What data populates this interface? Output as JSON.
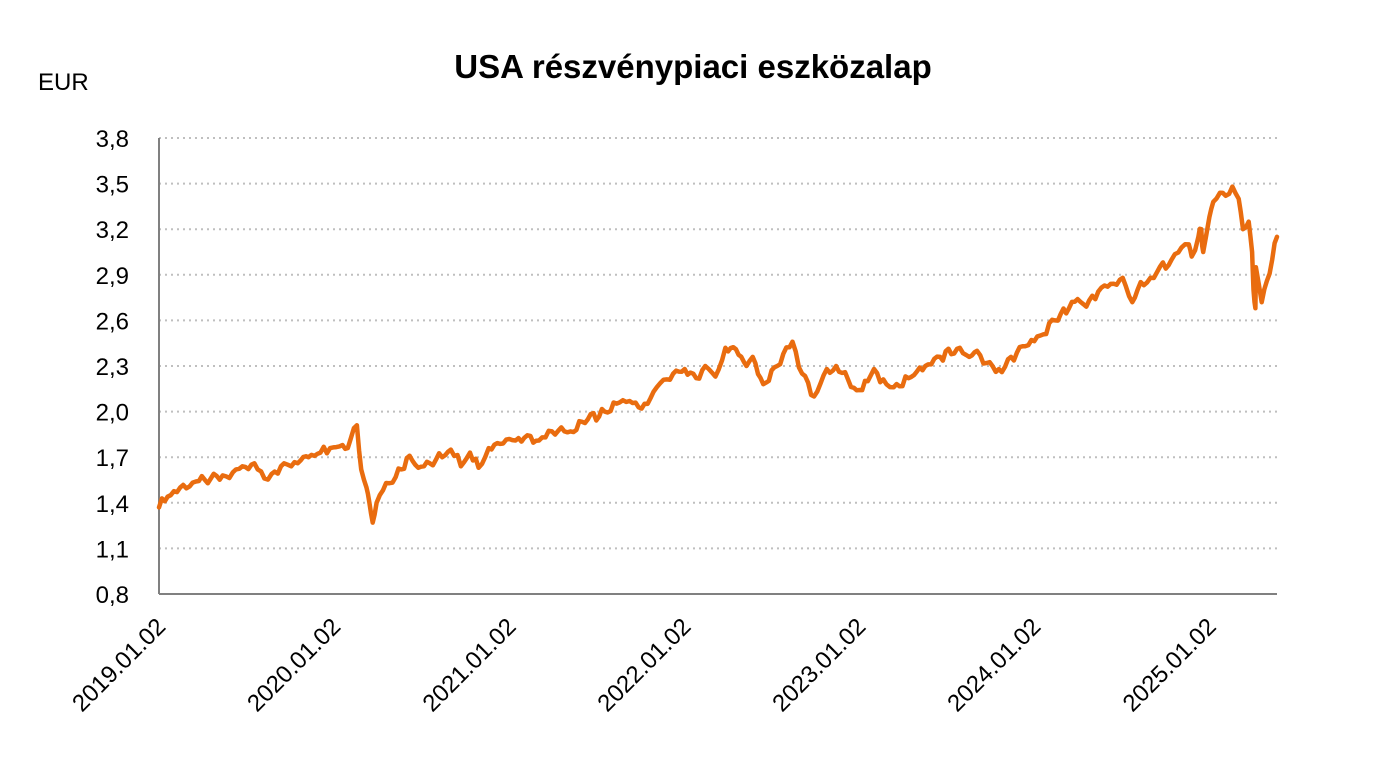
{
  "chart_data": {
    "type": "line",
    "title": "USA részvénypiaci eszközalap",
    "ylabel": "EUR",
    "xlabel": "",
    "ylim": [
      0.8,
      3.8
    ],
    "yticks": [
      "3,8",
      "3,5",
      "3,2",
      "2,9",
      "2,6",
      "2,3",
      "2,0",
      "1,7",
      "1,4",
      "1,1",
      "0,8"
    ],
    "yticks_values": [
      3.8,
      3.5,
      3.2,
      2.9,
      2.6,
      2.3,
      2.0,
      1.7,
      1.4,
      1.1,
      0.8
    ],
    "xlim": [
      "2019-01-02",
      "2025-05-23"
    ],
    "xticks": [
      "2019.01.02",
      "2020.01.02",
      "2021.01.02",
      "2022.01.02",
      "2023.01.02",
      "2024.01.02",
      "2025.01.02"
    ],
    "xticks_dates": [
      "2019-01-02",
      "2020-01-02",
      "2021-01-02",
      "2022-01-02",
      "2023-01-02",
      "2024-01-02",
      "2025-01-02"
    ],
    "grid": true,
    "legend": "none",
    "series": [
      {
        "color": "#e96c0f",
        "points": [
          [
            "2019-01-02",
            1.37
          ],
          [
            "2019-01-20",
            1.44
          ],
          [
            "2019-02-15",
            1.5
          ],
          [
            "2019-03-20",
            1.54
          ],
          [
            "2019-04-20",
            1.56
          ],
          [
            "2019-05-15",
            1.58
          ],
          [
            "2019-06-05",
            1.6
          ],
          [
            "2019-06-25",
            1.64
          ],
          [
            "2019-07-20",
            1.66
          ],
          [
            "2019-08-10",
            1.56
          ],
          [
            "2019-08-25",
            1.59
          ],
          [
            "2019-09-20",
            1.66
          ],
          [
            "2019-10-05",
            1.64
          ],
          [
            "2019-10-25",
            1.68
          ],
          [
            "2019-11-10",
            1.7
          ],
          [
            "2019-12-05",
            1.73
          ],
          [
            "2019-12-25",
            1.76
          ],
          [
            "2020-01-20",
            1.78
          ],
          [
            "2020-01-31",
            1.76
          ],
          [
            "2020-02-19",
            1.91
          ],
          [
            "2020-02-28",
            1.62
          ],
          [
            "2020-03-10",
            1.5
          ],
          [
            "2020-03-16",
            1.4
          ],
          [
            "2020-03-23",
            1.27
          ],
          [
            "2020-03-31",
            1.4
          ],
          [
            "2020-04-20",
            1.53
          ],
          [
            "2020-05-10",
            1.57
          ],
          [
            "2020-06-08",
            1.71
          ],
          [
            "2020-06-26",
            1.63
          ],
          [
            "2020-07-20",
            1.66
          ],
          [
            "2020-08-15",
            1.7
          ],
          [
            "2020-09-02",
            1.75
          ],
          [
            "2020-09-23",
            1.64
          ],
          [
            "2020-10-12",
            1.73
          ],
          [
            "2020-10-30",
            1.63
          ],
          [
            "2020-11-20",
            1.76
          ],
          [
            "2020-12-20",
            1.79
          ],
          [
            "2021-01-15",
            1.81
          ],
          [
            "2021-02-15",
            1.84
          ],
          [
            "2021-03-05",
            1.81
          ],
          [
            "2021-04-01",
            1.87
          ],
          [
            "2021-05-10",
            1.87
          ],
          [
            "2021-06-15",
            1.95
          ],
          [
            "2021-07-20",
            2.0
          ],
          [
            "2021-08-20",
            2.06
          ],
          [
            "2021-09-10",
            2.07
          ],
          [
            "2021-10-05",
            2.02
          ],
          [
            "2021-10-30",
            2.13
          ],
          [
            "2021-11-20",
            2.21
          ],
          [
            "2021-12-10",
            2.25
          ],
          [
            "2022-01-03",
            2.28
          ],
          [
            "2022-01-27",
            2.22
          ],
          [
            "2022-02-15",
            2.3
          ],
          [
            "2022-03-08",
            2.23
          ],
          [
            "2022-03-29",
            2.42
          ],
          [
            "2022-04-20",
            2.41
          ],
          [
            "2022-05-12",
            2.3
          ],
          [
            "2022-05-25",
            2.36
          ],
          [
            "2022-06-16",
            2.18
          ],
          [
            "2022-07-15",
            2.3
          ],
          [
            "2022-08-16",
            2.46
          ],
          [
            "2022-09-05",
            2.25
          ],
          [
            "2022-09-30",
            2.1
          ],
          [
            "2022-10-20",
            2.24
          ],
          [
            "2022-11-15",
            2.3
          ],
          [
            "2022-12-10",
            2.21
          ],
          [
            "2022-12-28",
            2.14
          ],
          [
            "2023-01-20",
            2.2
          ],
          [
            "2023-02-02",
            2.28
          ],
          [
            "2023-02-28",
            2.18
          ],
          [
            "2023-03-15",
            2.16
          ],
          [
            "2023-04-15",
            2.22
          ],
          [
            "2023-05-20",
            2.3
          ],
          [
            "2023-06-20",
            2.36
          ],
          [
            "2023-07-31",
            2.42
          ],
          [
            "2023-08-20",
            2.36
          ],
          [
            "2023-09-05",
            2.4
          ],
          [
            "2023-09-25",
            2.32
          ],
          [
            "2023-10-27",
            2.26
          ],
          [
            "2023-11-15",
            2.36
          ],
          [
            "2023-12-15",
            2.43
          ],
          [
            "2024-01-15",
            2.5
          ],
          [
            "2024-02-15",
            2.6
          ],
          [
            "2024-03-15",
            2.68
          ],
          [
            "2024-04-02",
            2.74
          ],
          [
            "2024-04-20",
            2.69
          ],
          [
            "2024-05-15",
            2.79
          ],
          [
            "2024-06-10",
            2.84
          ],
          [
            "2024-07-05",
            2.88
          ],
          [
            "2024-07-25",
            2.72
          ],
          [
            "2024-08-05",
            2.8
          ],
          [
            "2024-08-25",
            2.85
          ],
          [
            "2024-09-15",
            2.92
          ],
          [
            "2024-10-15",
            3.0
          ],
          [
            "2024-11-05",
            3.08
          ],
          [
            "2024-11-20",
            3.1
          ],
          [
            "2024-11-26",
            3.02
          ],
          [
            "2024-12-10",
            3.15
          ],
          [
            "2024-12-16",
            3.2
          ],
          [
            "2024-12-20",
            3.05
          ],
          [
            "2025-01-02",
            3.28
          ],
          [
            "2025-01-10",
            3.38
          ],
          [
            "2025-01-24",
            3.44
          ],
          [
            "2025-02-05",
            3.42
          ],
          [
            "2025-02-19",
            3.48
          ],
          [
            "2025-03-04",
            3.4
          ],
          [
            "2025-03-13",
            3.2
          ],
          [
            "2025-03-25",
            3.25
          ],
          [
            "2025-04-01",
            3.05
          ],
          [
            "2025-04-04",
            2.8
          ],
          [
            "2025-04-08",
            2.68
          ],
          [
            "2025-04-09",
            2.95
          ],
          [
            "2025-04-21",
            2.72
          ],
          [
            "2025-05-02",
            2.86
          ],
          [
            "2025-05-13",
            3.0
          ],
          [
            "2025-05-23",
            3.15
          ]
        ]
      }
    ]
  }
}
